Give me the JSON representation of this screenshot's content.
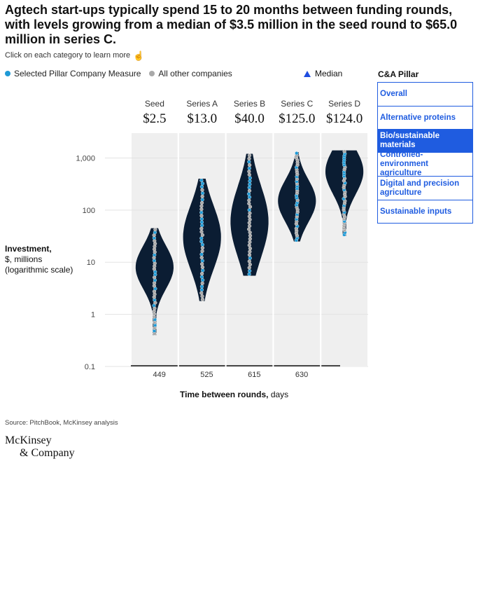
{
  "header": {
    "title": "Agtech start-ups typically spend 15 to 20 months between funding rounds, with levels growing from a median of $3.5 million in the seed round to $65.0 million in series C.",
    "subtitle": "Click on each category to learn more"
  },
  "legend": {
    "selected": "Selected Pillar Company Measure",
    "others": "All other companies",
    "median": "Median"
  },
  "pillar": {
    "heading": "C&A Pillar",
    "items": [
      {
        "label": "Overall"
      },
      {
        "label": "Alternative proteins"
      },
      {
        "label": "Bio/sustainable materials"
      },
      {
        "label": "Controlled-environment agriculture"
      },
      {
        "label": "Digital and precision agriculture"
      },
      {
        "label": "Sustainable inputs"
      }
    ],
    "selected": "Bio/sustainable materials"
  },
  "y_axis": {
    "title": "Investment,",
    "line2": "$, millions",
    "line3": "(logarithmic scale)"
  },
  "x_axis": {
    "title": "Time between rounds,",
    "unit": "days"
  },
  "footer": {
    "source": "Source: PitchBook, McKinsey analysis",
    "logo_line1": "McKinsey",
    "logo_line2": "& Company"
  },
  "colors": {
    "violin": "#0b1d33",
    "selected": "#1f9ad6",
    "other": "#a9a9a9",
    "median": "#1f4de0",
    "panel": "#efefef",
    "accent": "#1f5ce0"
  },
  "chart_data": {
    "type": "violin",
    "scale": "log",
    "ylim": [
      0.1,
      2000
    ],
    "yticks": [
      {
        "value": 0.1,
        "label": "0.1"
      },
      {
        "value": 1,
        "label": "1"
      },
      {
        "value": 10,
        "label": "10"
      },
      {
        "value": 100,
        "label": "100"
      },
      {
        "value": 1000,
        "label": "1,000"
      }
    ],
    "categories": [
      {
        "name": "Seed",
        "median_label": "$2.5",
        "median": 2.5,
        "min": 0.4,
        "max": 45,
        "mode": 8,
        "spread": 0.42
      },
      {
        "name": "Series A",
        "median_label": "$13.0",
        "median": 13.0,
        "min": 1.8,
        "max": 400,
        "mode": 30,
        "spread": 0.55
      },
      {
        "name": "Series B",
        "median_label": "$40.0",
        "median": 40.0,
        "min": 5.5,
        "max": 1200,
        "mode": 60,
        "spread": 0.62
      },
      {
        "name": "Series C",
        "median_label": "$125.0",
        "median": 125.0,
        "min": 25,
        "max": 1300,
        "mode": 150,
        "spread": 0.5
      },
      {
        "name": "Series D",
        "median_label": "$124.0",
        "median": 124.0,
        "min": 32,
        "max": 1400,
        "mode": 550,
        "spread": 0.55
      }
    ],
    "gaps": [
      {
        "label": "449"
      },
      {
        "label": "525"
      },
      {
        "label": "615"
      },
      {
        "label": "630"
      }
    ]
  }
}
